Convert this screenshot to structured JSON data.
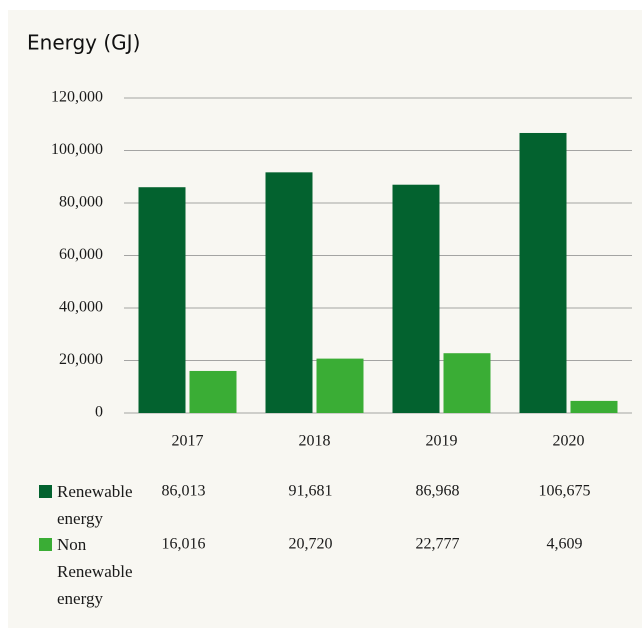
{
  "chart_data": {
    "type": "bar",
    "title": "Energy (GJ)",
    "categories": [
      "2017",
      "2018",
      "2019",
      "2020"
    ],
    "series": [
      {
        "name": "Renewable energy",
        "color": "#03622f",
        "values": [
          86013,
          91681,
          86968,
          106675
        ],
        "value_labels": [
          "86,013",
          "91,681",
          "86,968",
          "106,675"
        ]
      },
      {
        "name": "Non Renewable energy",
        "color": "#3aad35",
        "values": [
          16016,
          20720,
          22777,
          4609
        ],
        "value_labels": [
          "16,016",
          "20,720",
          "22,777",
          "4,609"
        ]
      }
    ],
    "ylim": [
      0,
      120000
    ],
    "yticks": [
      0,
      {
        "value": 20000,
        "label": "20,000"
      },
      {
        "value": 40000,
        "label": "40,000"
      },
      {
        "value": 60000,
        "label": "60,000"
      },
      {
        "value": 80000,
        "label": "80,000"
      },
      {
        "value": 100000,
        "label": "100,000"
      },
      {
        "value": 120000,
        "label": "120,000"
      }
    ],
    "grid": true
  }
}
